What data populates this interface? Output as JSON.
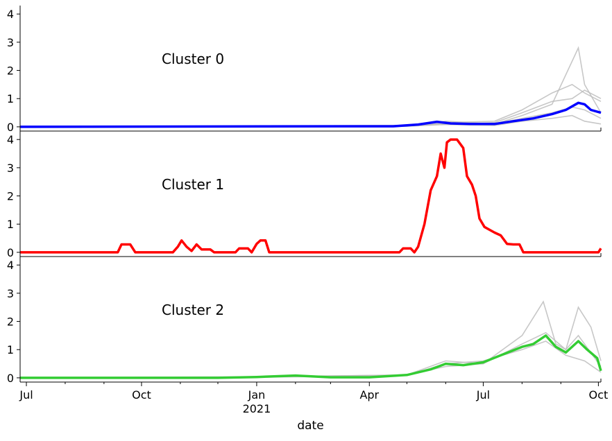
{
  "chart_data": {
    "type": "line",
    "layout": "three vertically stacked panels sharing a date x-axis",
    "xlabel": "date",
    "x_tick_labels": [
      "Jul",
      "Oct",
      "Jan",
      "Apr",
      "Jul",
      "Oct"
    ],
    "x_tick_dates": [
      "2020-07-01",
      "2020-10-01",
      "2021-01-01",
      "2021-04-01",
      "2021-07-01",
      "2021-10-01"
    ],
    "x_year_label": "2021",
    "xlim": [
      "2020-06-26",
      "2021-10-03"
    ],
    "ylim": [
      -0.15,
      4.3
    ],
    "y_ticks": [
      0,
      1,
      2,
      3,
      4
    ],
    "grid": false,
    "colors": {
      "cluster0": "#0000ff",
      "cluster1": "#ff0000",
      "cluster2": "#33cc33",
      "members": "#bdbdbd"
    },
    "panels": [
      {
        "label": "Cluster 0",
        "color": "#0000ff",
        "mean": [
          [
            "2020-06-26",
            0
          ],
          [
            "2021-03-01",
            0.02
          ],
          [
            "2021-04-20",
            0.02
          ],
          [
            "2021-05-10",
            0.08
          ],
          [
            "2021-05-25",
            0.18
          ],
          [
            "2021-06-05",
            0.12
          ],
          [
            "2021-06-20",
            0.1
          ],
          [
            "2021-07-10",
            0.1
          ],
          [
            "2021-07-25",
            0.2
          ],
          [
            "2021-08-10",
            0.3
          ],
          [
            "2021-08-25",
            0.45
          ],
          [
            "2021-09-05",
            0.6
          ],
          [
            "2021-09-15",
            0.85
          ],
          [
            "2021-09-20",
            0.8
          ],
          [
            "2021-09-25",
            0.6
          ],
          [
            "2021-10-03",
            0.5
          ]
        ],
        "members": [
          [
            [
              "2020-06-26",
              0
            ],
            [
              "2021-05-01",
              0.05
            ],
            [
              "2021-06-01",
              0.15
            ],
            [
              "2021-07-10",
              0.2
            ],
            [
              "2021-08-01",
              0.6
            ],
            [
              "2021-08-25",
              1.2
            ],
            [
              "2021-09-10",
              1.5
            ],
            [
              "2021-09-20",
              1.2
            ],
            [
              "2021-10-03",
              0.9
            ]
          ],
          [
            [
              "2020-06-26",
              0
            ],
            [
              "2021-05-01",
              0.02
            ],
            [
              "2021-06-01",
              0.2
            ],
            [
              "2021-07-10",
              0.1
            ],
            [
              "2021-08-01",
              0.4
            ],
            [
              "2021-08-25",
              0.8
            ],
            [
              "2021-09-15",
              2.8
            ],
            [
              "2021-09-20",
              1.5
            ],
            [
              "2021-10-03",
              0.5
            ]
          ],
          [
            [
              "2020-06-26",
              0
            ],
            [
              "2021-05-01",
              0.05
            ],
            [
              "2021-06-01",
              0.1
            ],
            [
              "2021-07-10",
              0.15
            ],
            [
              "2021-08-01",
              0.5
            ],
            [
              "2021-08-25",
              0.9
            ],
            [
              "2021-09-10",
              1.0
            ],
            [
              "2021-09-20",
              1.3
            ],
            [
              "2021-10-03",
              1.0
            ]
          ],
          [
            [
              "2020-06-26",
              0
            ],
            [
              "2021-05-01",
              0.03
            ],
            [
              "2021-06-01",
              0.1
            ],
            [
              "2021-07-10",
              0.1
            ],
            [
              "2021-08-01",
              0.3
            ],
            [
              "2021-08-25",
              0.5
            ],
            [
              "2021-09-10",
              0.7
            ],
            [
              "2021-09-20",
              0.6
            ],
            [
              "2021-10-03",
              0.3
            ]
          ],
          [
            [
              "2020-06-26",
              0
            ],
            [
              "2021-05-01",
              0.02
            ],
            [
              "2021-06-01",
              0.08
            ],
            [
              "2021-07-10",
              0.05
            ],
            [
              "2021-08-01",
              0.2
            ],
            [
              "2021-08-25",
              0.3
            ],
            [
              "2021-09-10",
              0.4
            ],
            [
              "2021-09-20",
              0.2
            ],
            [
              "2021-10-03",
              0.1
            ]
          ]
        ]
      },
      {
        "label": "Cluster 1",
        "color": "#ff0000",
        "mean": [
          [
            "2020-06-26",
            0
          ],
          [
            "2020-09-12",
            0
          ],
          [
            "2020-09-15",
            0.28
          ],
          [
            "2020-09-22",
            0.28
          ],
          [
            "2020-09-26",
            0
          ],
          [
            "2020-10-26",
            0
          ],
          [
            "2020-10-30",
            0.2
          ],
          [
            "2020-11-02",
            0.42
          ],
          [
            "2020-11-06",
            0.2
          ],
          [
            "2020-11-10",
            0.05
          ],
          [
            "2020-11-14",
            0.28
          ],
          [
            "2020-11-18",
            0.1
          ],
          [
            "2020-11-25",
            0.1
          ],
          [
            "2020-11-28",
            0
          ],
          [
            "2020-12-15",
            0
          ],
          [
            "2020-12-18",
            0.14
          ],
          [
            "2020-12-25",
            0.14
          ],
          [
            "2020-12-28",
            0
          ],
          [
            "2021-01-01",
            0.3
          ],
          [
            "2021-01-04",
            0.42
          ],
          [
            "2021-01-08",
            0.42
          ],
          [
            "2021-01-11",
            0
          ],
          [
            "2021-04-25",
            0
          ],
          [
            "2021-04-28",
            0.14
          ],
          [
            "2021-05-04",
            0.14
          ],
          [
            "2021-05-07",
            0
          ],
          [
            "2021-05-10",
            0.2
          ],
          [
            "2021-05-15",
            1.0
          ],
          [
            "2021-05-20",
            2.2
          ],
          [
            "2021-05-25",
            2.7
          ],
          [
            "2021-05-28",
            3.5
          ],
          [
            "2021-05-31",
            3.0
          ],
          [
            "2021-06-02",
            3.9
          ],
          [
            "2021-06-05",
            4.0
          ],
          [
            "2021-06-10",
            4.0
          ],
          [
            "2021-06-15",
            3.7
          ],
          [
            "2021-06-18",
            2.7
          ],
          [
            "2021-06-22",
            2.4
          ],
          [
            "2021-06-25",
            2.0
          ],
          [
            "2021-06-28",
            1.2
          ],
          [
            "2021-07-02",
            0.9
          ],
          [
            "2021-07-06",
            0.8
          ],
          [
            "2021-07-10",
            0.7
          ],
          [
            "2021-07-15",
            0.6
          ],
          [
            "2021-07-20",
            0.3
          ],
          [
            "2021-07-25",
            0.28
          ],
          [
            "2021-07-30",
            0.28
          ],
          [
            "2021-08-02",
            0
          ],
          [
            "2021-10-01",
            0
          ],
          [
            "2021-10-03",
            0.14
          ]
        ],
        "members": []
      },
      {
        "label": "Cluster 2",
        "color": "#33cc33",
        "mean": [
          [
            "2020-06-26",
            0
          ],
          [
            "2020-12-01",
            0
          ],
          [
            "2021-01-01",
            0.03
          ],
          [
            "2021-02-01",
            0.08
          ],
          [
            "2021-03-01",
            0.02
          ],
          [
            "2021-04-01",
            0.02
          ],
          [
            "2021-05-01",
            0.1
          ],
          [
            "2021-05-20",
            0.3
          ],
          [
            "2021-06-01",
            0.5
          ],
          [
            "2021-06-15",
            0.45
          ],
          [
            "2021-07-01",
            0.55
          ],
          [
            "2021-07-15",
            0.8
          ],
          [
            "2021-08-01",
            1.1
          ],
          [
            "2021-08-10",
            1.2
          ],
          [
            "2021-08-20",
            1.5
          ],
          [
            "2021-08-28",
            1.1
          ],
          [
            "2021-09-05",
            0.9
          ],
          [
            "2021-09-15",
            1.3
          ],
          [
            "2021-09-22",
            1.0
          ],
          [
            "2021-09-30",
            0.7
          ],
          [
            "2021-10-03",
            0.25
          ]
        ],
        "members": [
          [
            [
              "2020-06-26",
              0
            ],
            [
              "2021-01-01",
              0.03
            ],
            [
              "2021-05-01",
              0.1
            ],
            [
              "2021-06-01",
              0.6
            ],
            [
              "2021-07-01",
              0.5
            ],
            [
              "2021-08-01",
              1.5
            ],
            [
              "2021-08-18",
              2.7
            ],
            [
              "2021-08-28",
              1.2
            ],
            [
              "2021-09-05",
              1.0
            ],
            [
              "2021-09-15",
              1.5
            ],
            [
              "2021-10-03",
              0.4
            ]
          ],
          [
            [
              "2020-06-26",
              0
            ],
            [
              "2021-01-01",
              0.04
            ],
            [
              "2021-05-01",
              0.1
            ],
            [
              "2021-06-01",
              0.4
            ],
            [
              "2021-07-01",
              0.5
            ],
            [
              "2021-08-01",
              1.2
            ],
            [
              "2021-08-20",
              1.6
            ],
            [
              "2021-09-05",
              1.0
            ],
            [
              "2021-09-15",
              2.5
            ],
            [
              "2021-09-25",
              1.8
            ],
            [
              "2021-10-03",
              0.6
            ]
          ],
          [
            [
              "2020-06-26",
              0
            ],
            [
              "2021-01-01",
              0.02
            ],
            [
              "2021-05-01",
              0.08
            ],
            [
              "2021-06-01",
              0.5
            ],
            [
              "2021-07-01",
              0.6
            ],
            [
              "2021-08-01",
              1.0
            ],
            [
              "2021-08-20",
              1.3
            ],
            [
              "2021-09-05",
              0.8
            ],
            [
              "2021-09-20",
              0.6
            ],
            [
              "2021-10-03",
              0.2
            ]
          ]
        ]
      }
    ]
  }
}
